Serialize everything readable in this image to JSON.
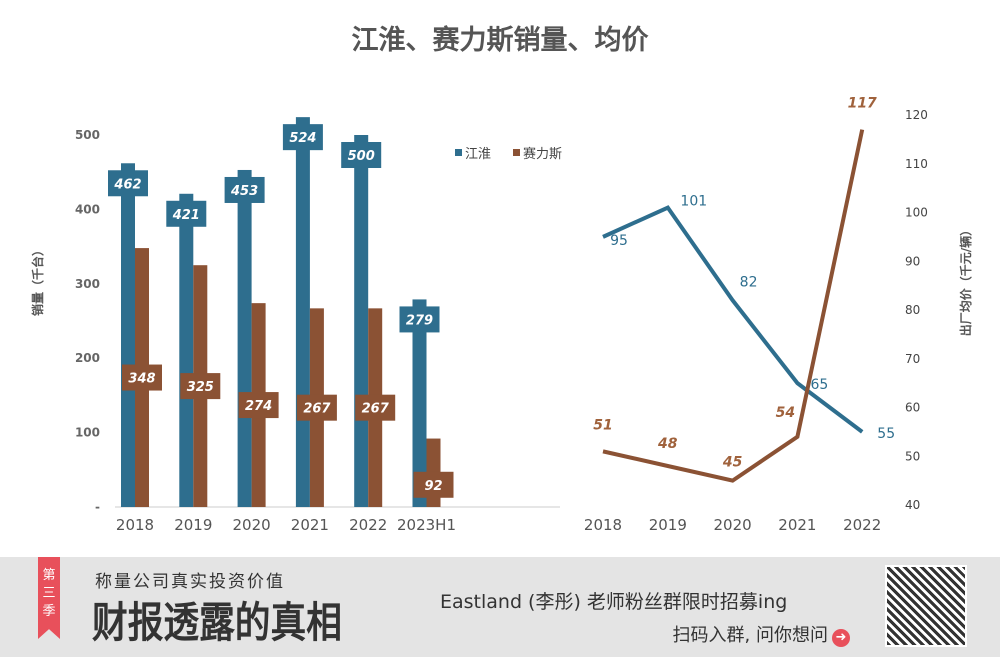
{
  "title": "江淮、赛力斯销量、均价",
  "chart_data": [
    {
      "type": "bar",
      "categories": [
        "2018",
        "2019",
        "2020",
        "2021",
        "2022",
        "2023H1"
      ],
      "ylabel": "销量（千台）",
      "ylim": [
        0,
        500
      ],
      "yticks": [
        "-",
        "100",
        "200",
        "300",
        "400",
        "500"
      ],
      "legend": "top-right",
      "series": [
        {
          "name": "江淮",
          "color": "#2e6e8e",
          "values": [
            462,
            421,
            453,
            524,
            500,
            279
          ]
        },
        {
          "name": "赛力斯",
          "color": "#8b5234",
          "values": [
            348,
            325,
            274,
            267,
            267,
            92
          ]
        }
      ]
    },
    {
      "type": "line",
      "categories": [
        "2018",
        "2019",
        "2020",
        "2021",
        "2022"
      ],
      "ylabel": "出厂均价（千元/辆）",
      "ylim": [
        40,
        120
      ],
      "yticks": [
        "40",
        "50",
        "60",
        "70",
        "80",
        "90",
        "100",
        "110",
        "120"
      ],
      "series": [
        {
          "name": "江淮",
          "color": "#2e6e8e",
          "values": [
            95,
            101,
            82,
            65,
            55
          ]
        },
        {
          "name": "赛力斯",
          "color": "#8b5234",
          "values": [
            51,
            48,
            45,
            54,
            117
          ]
        }
      ]
    }
  ],
  "footer": {
    "ribbon": "第三季",
    "slogan": "称量公司真实投资价值",
    "brand": "财报透露的真相",
    "promo": "Eastland (李彤) 老师粉丝群限时招募ing",
    "cta": "扫码入群, 问你想问",
    "cta_icon": "arrow-right-circle-icon"
  }
}
